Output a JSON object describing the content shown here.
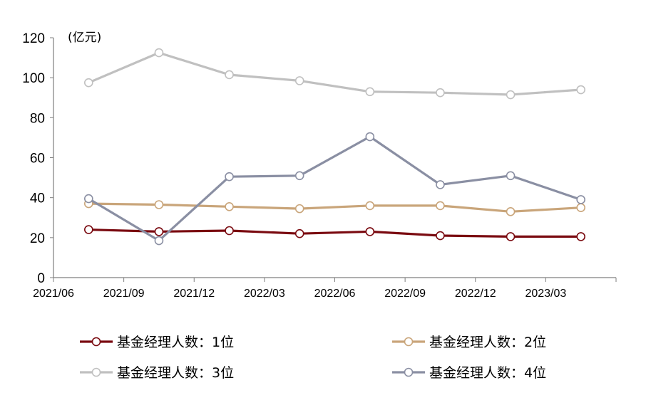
{
  "chart_data": {
    "type": "line",
    "unit_label": "(亿元)",
    "categories": [
      "2021/06",
      "2021/09",
      "2021/12",
      "2022/03",
      "2022/06",
      "2022/09",
      "2022/12",
      "2023/03"
    ],
    "ylim": [
      0,
      120
    ],
    "yticks": [
      "0",
      "20",
      "40",
      "60",
      "80",
      "100",
      "120"
    ],
    "grid": false,
    "legend_position": "bottom",
    "series": [
      {
        "name": "基金经理人数：1位",
        "color": "#7a0a10",
        "values": [
          24.0,
          23.0,
          23.5,
          22.0,
          23.0,
          21.0,
          20.5,
          20.5
        ]
      },
      {
        "name": "基金经理人数：2位",
        "color": "#c9a57a",
        "values": [
          37.0,
          36.5,
          35.5,
          34.5,
          36.0,
          36.0,
          33.0,
          35.0
        ]
      },
      {
        "name": "基金经理人数：3位",
        "color": "#c0c0c0",
        "values": [
          97.5,
          112.5,
          101.5,
          98.5,
          93.0,
          92.5,
          91.5,
          94.0
        ]
      },
      {
        "name": "基金经理人数：4位",
        "color": "#8a8fa3",
        "values": [
          39.5,
          18.5,
          50.5,
          51.0,
          70.5,
          46.5,
          51.0,
          39.0
        ]
      }
    ]
  }
}
